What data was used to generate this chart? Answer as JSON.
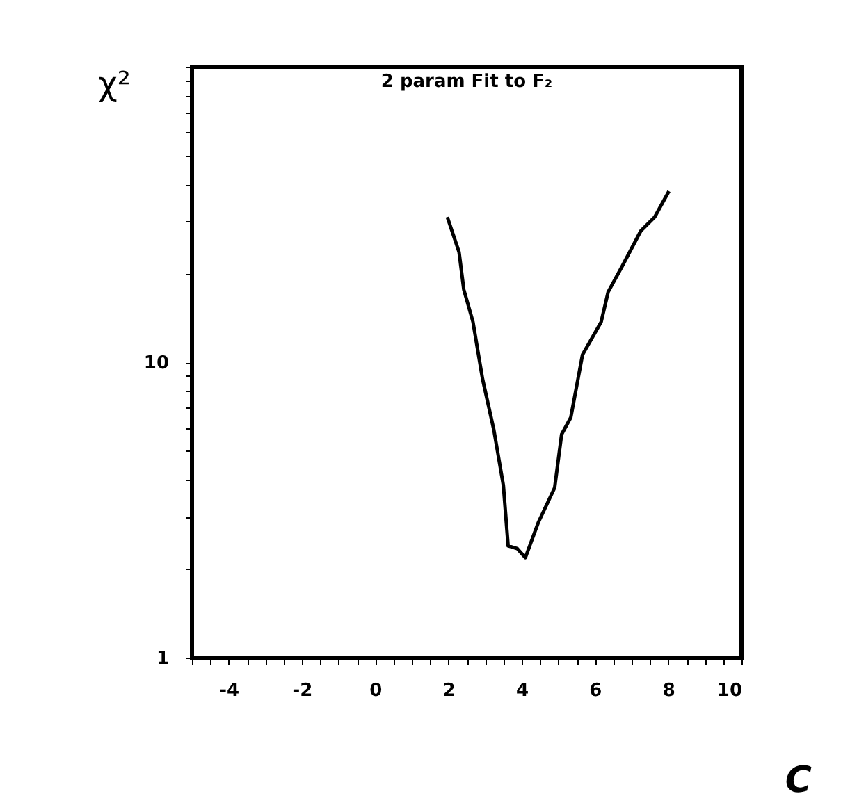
{
  "chart_data": {
    "type": "line",
    "title": "2 param Fit to F₂",
    "xlabel": "C",
    "ylabel": "χ²",
    "x": [
      1.97,
      2.29,
      2.42,
      2.67,
      2.93,
      3.24,
      3.5,
      3.63,
      3.88,
      4.1,
      4.45,
      4.9,
      5.09,
      5.34,
      5.66,
      6.17,
      6.36,
      6.74,
      7.25,
      7.63,
      8.02
    ],
    "series": [
      {
        "color": "#000000",
        "values": [
          31,
          23.6,
          17.6,
          13.7,
          8.8,
          5.9,
          3.83,
          2.39,
          2.34,
          2.18,
          2.86,
          3.76,
          5.7,
          6.5,
          10.6,
          13.7,
          17.3,
          21.1,
          27.8,
          31,
          37.9
        ]
      }
    ],
    "xlim": [
      -5,
      10
    ],
    "ylim": [
      1,
      100
    ],
    "log": "y",
    "grid": false,
    "marker": "none",
    "line_style": "solid",
    "xticks": [
      {
        "value": -5,
        "label": null
      },
      {
        "value": -4.5,
        "label": null
      },
      -4,
      {
        "value": -3.5,
        "label": null
      },
      {
        "value": -3,
        "label": null
      },
      {
        "value": -2.5,
        "label": null
      },
      -2,
      {
        "value": -1.5,
        "label": null
      },
      {
        "value": -1,
        "label": null
      },
      {
        "value": -0.5,
        "label": null
      },
      0,
      {
        "value": 0.5,
        "label": null
      },
      {
        "value": 1,
        "label": null
      },
      {
        "value": 1.5,
        "label": null
      },
      2,
      {
        "value": 2.5,
        "label": null
      },
      {
        "value": 3,
        "label": null
      },
      {
        "value": 3.5,
        "label": null
      },
      4,
      {
        "value": 4.5,
        "label": null
      },
      {
        "value": 5,
        "label": null
      },
      {
        "value": 5.5,
        "label": null
      },
      6,
      {
        "value": 6.5,
        "label": null
      },
      {
        "value": 7,
        "label": null
      },
      {
        "value": 7.5,
        "label": null
      },
      8,
      {
        "value": 8.5,
        "label": null
      },
      {
        "value": 9,
        "label": null
      },
      {
        "value": 9.5,
        "label": null
      },
      10
    ],
    "yticks": [
      1,
      {
        "value": 2,
        "label": null
      },
      {
        "value": 3,
        "label": null
      },
      {
        "value": 4,
        "label": null
      },
      {
        "value": 5,
        "label": null
      },
      {
        "value": 6,
        "label": null
      },
      {
        "value": 7,
        "label": null
      },
      {
        "value": 8,
        "label": null
      },
      {
        "value": 9,
        "label": null
      },
      10,
      {
        "value": 20,
        "label": null
      },
      {
        "value": 30,
        "label": null
      },
      {
        "value": 40,
        "label": null
      },
      {
        "value": 50,
        "label": null
      },
      {
        "value": 60,
        "label": null
      },
      {
        "value": 70,
        "label": null
      },
      {
        "value": 80,
        "label": null
      },
      {
        "value": 90,
        "label": null
      },
      {
        "value": 100,
        "label": null
      }
    ]
  }
}
